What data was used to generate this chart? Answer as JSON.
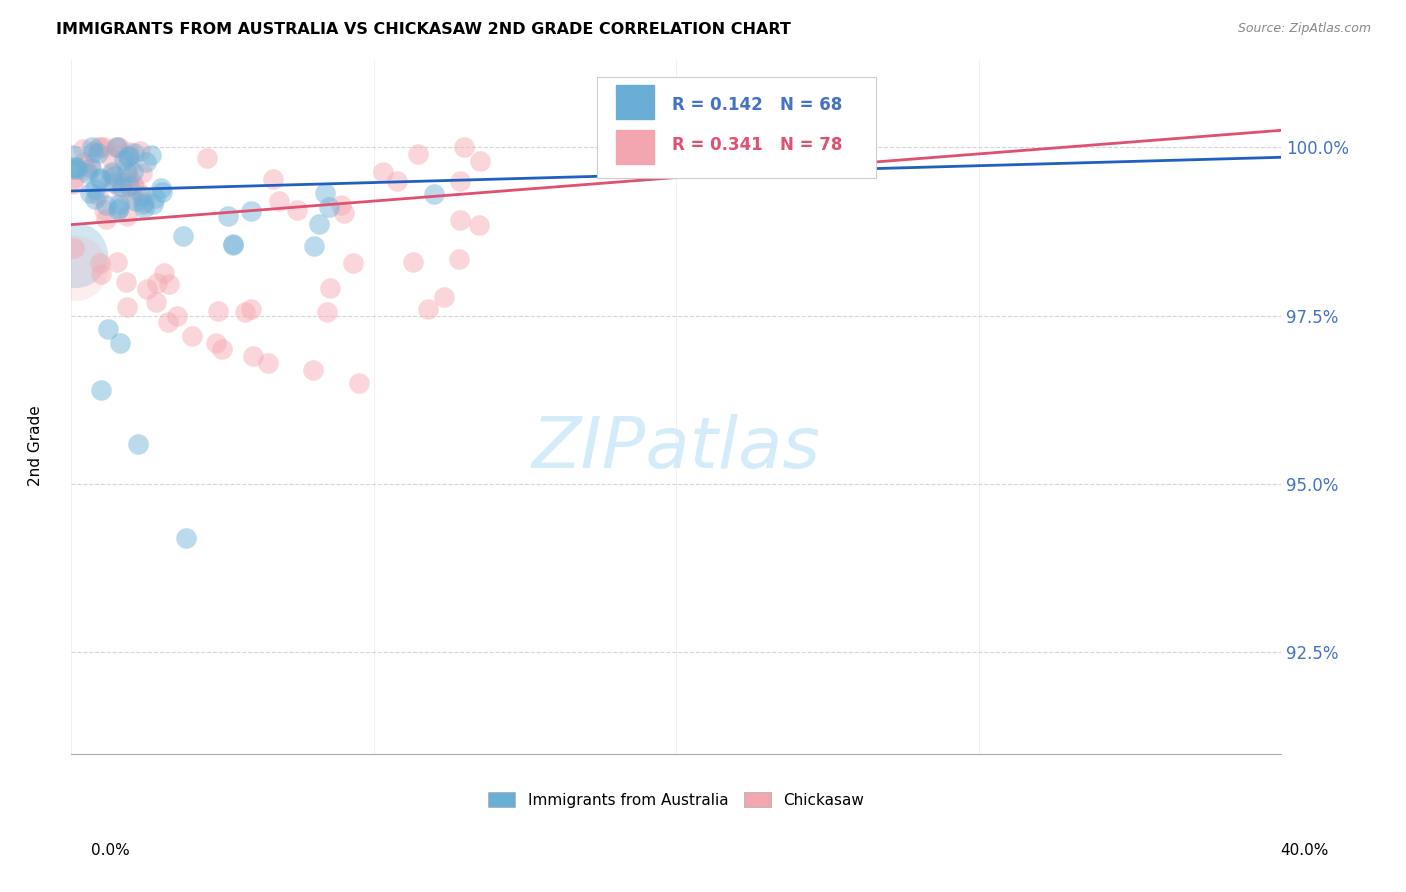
{
  "title": "IMMIGRANTS FROM AUSTRALIA VS CHICKASAW 2ND GRADE CORRELATION CHART",
  "source": "Source: ZipAtlas.com",
  "ylabel": "2nd Grade",
  "yticks": [
    92.5,
    95.0,
    97.5,
    100.0
  ],
  "ytick_labels": [
    "92.5%",
    "95.0%",
    "97.5%",
    "100.0%"
  ],
  "xrange": [
    0.0,
    40.0
  ],
  "yrange": [
    91.0,
    101.3
  ],
  "legend_blue_label": "Immigrants from Australia",
  "legend_pink_label": "Chickasaw",
  "R_blue": 0.142,
  "N_blue": 68,
  "R_pink": 0.341,
  "N_pink": 78,
  "blue_color": "#6aaed6",
  "pink_color": "#f4a6b0",
  "trendline_blue": "#2060c0",
  "trendline_pink": "#e05070",
  "blue_trendline_x": [
    0.0,
    40.0
  ],
  "blue_trendline_y": [
    99.35,
    99.85
  ],
  "pink_trendline_x": [
    0.0,
    40.0
  ],
  "pink_trendline_y": [
    98.85,
    100.25
  ],
  "watermark_text": "ZIPatlas",
  "background_color": "#ffffff",
  "grid_color": "#cccccc",
  "ytick_color": "#4472c4"
}
